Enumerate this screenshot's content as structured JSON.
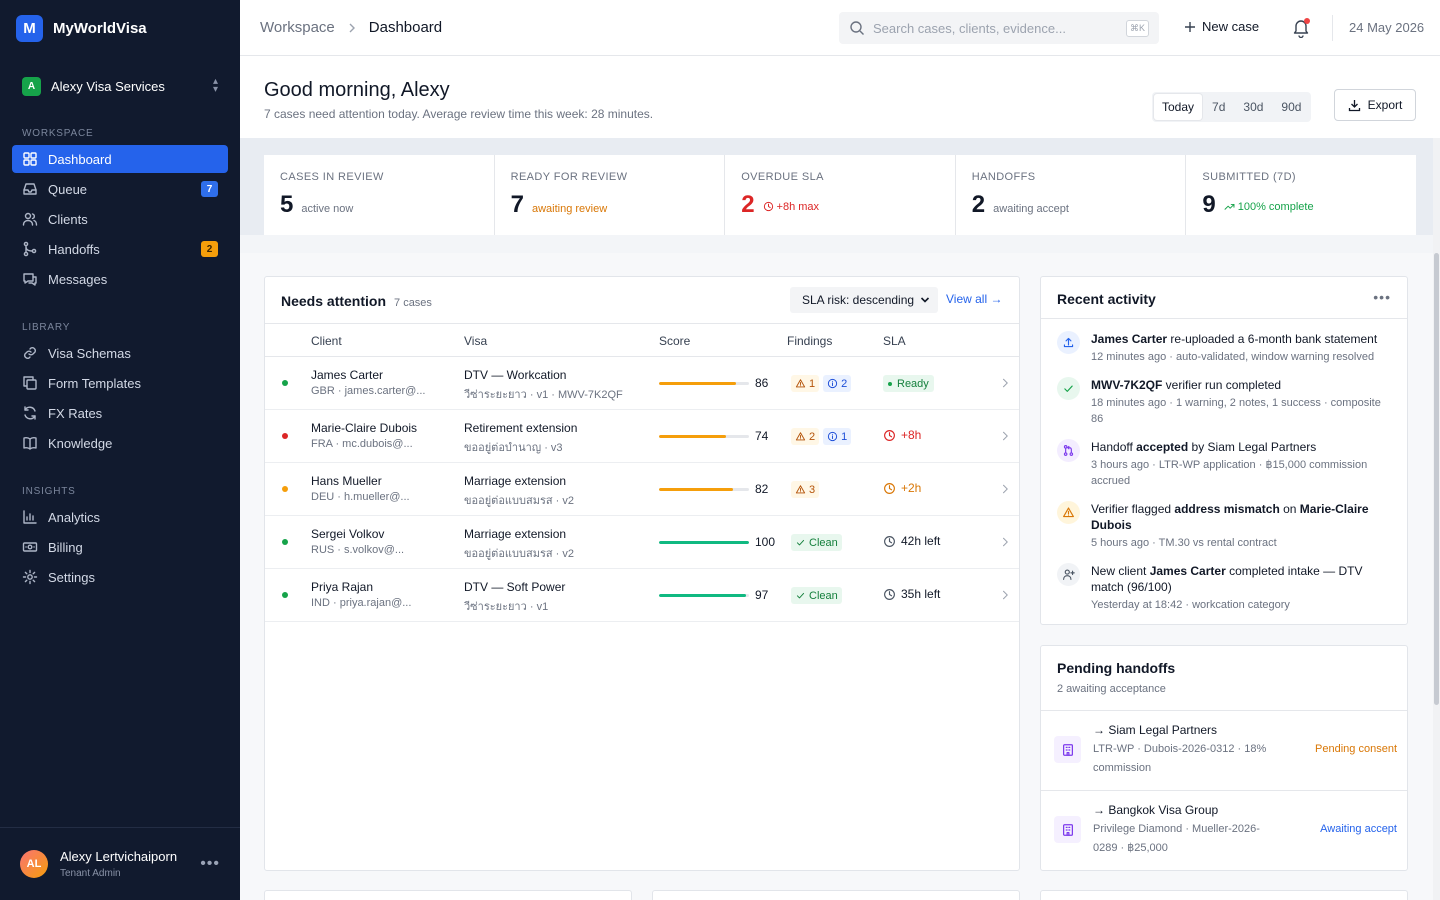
{
  "app": {
    "brand_letter": "M",
    "brand_name": "MyWorldVisa"
  },
  "tenant": {
    "badge": "A",
    "name": "Alexy Visa Services"
  },
  "sidebar": {
    "sections": [
      {
        "label": "WORKSPACE",
        "items": [
          {
            "label": "Dashboard",
            "icon": "grid-icon",
            "active": true
          },
          {
            "label": "Queue",
            "icon": "inbox-icon",
            "badge": "7"
          },
          {
            "label": "Clients",
            "icon": "users-icon"
          },
          {
            "label": "Handoffs",
            "icon": "git-merge-icon",
            "badge": "2"
          },
          {
            "label": "Messages",
            "icon": "messages-icon"
          }
        ]
      },
      {
        "label": "LIBRARY",
        "items": [
          {
            "label": "Visa Schemas",
            "icon": "link-icon"
          },
          {
            "label": "Form Templates",
            "icon": "copy-icon"
          },
          {
            "label": "FX Rates",
            "icon": "refresh-icon"
          },
          {
            "label": "Knowledge",
            "icon": "book-icon"
          }
        ]
      },
      {
        "label": "INSIGHTS",
        "items": [
          {
            "label": "Analytics",
            "icon": "bar-chart-icon"
          },
          {
            "label": "Billing",
            "icon": "banknote-icon"
          },
          {
            "label": "Settings",
            "icon": "gear-icon"
          }
        ]
      }
    ]
  },
  "user": {
    "initials": "AL",
    "name": "Alexy Lertvichaiporn",
    "role": "Tenant Admin"
  },
  "topbar": {
    "breadcrumb": [
      "Workspace",
      "Dashboard"
    ],
    "search_placeholder": "Search cases, clients, evidence...",
    "search_shortcut": "⌘K",
    "new_case": "New case",
    "date": "24 May 2026"
  },
  "header": {
    "greeting": "Good morning, Alexy",
    "subtitle": "7 cases need attention today. Average review time this week: 28 minutes.",
    "ranges": [
      "Today",
      "7d",
      "30d",
      "90d"
    ],
    "active_range": "Today",
    "export": "Export"
  },
  "stats": [
    {
      "label": "CASES IN REVIEW",
      "value": "5",
      "note": "active now",
      "tone": "neutral"
    },
    {
      "label": "READY FOR REVIEW",
      "value": "7",
      "note": "awaiting review",
      "tone": "amber"
    },
    {
      "label": "OVERDUE SLA",
      "value": "2",
      "note": "+8h max",
      "tone": "red"
    },
    {
      "label": "HANDOFFS",
      "value": "2",
      "note": "awaiting accept",
      "tone": "neutral"
    },
    {
      "label": "SUBMITTED (7D)",
      "value": "9",
      "note": "100% complete",
      "tone": "green"
    }
  ],
  "attention": {
    "title": "Needs attention",
    "count": "7 cases",
    "sort": "SLA risk: descending",
    "view_all": "View all →",
    "columns": [
      "Client",
      "Visa",
      "Score",
      "Findings",
      "SLA"
    ],
    "rows": [
      {
        "name": "James Carter",
        "sub": "GBR · james.carter@...",
        "visa": "DTV — Workcation",
        "visa_sub": "วีซ่าระยะยาว · v1 · MWV-7K2QF",
        "score": 86,
        "dot": "#16a34a",
        "bar": "#f59e0b",
        "findings": [
          {
            "type": "warn",
            "text": "1"
          },
          {
            "type": "info",
            "text": "2"
          }
        ],
        "sla": "Ready",
        "sla_tone": "ready"
      },
      {
        "name": "Marie-Claire Dubois",
        "sub": "FRA · mc.dubois@...",
        "visa": "Retirement extension",
        "visa_sub": "ขออยู่ต่อบำนาญ · v3",
        "score": 74,
        "dot": "#dc2626",
        "bar": "#f59e0b",
        "findings": [
          {
            "type": "warn",
            "text": "2"
          },
          {
            "type": "info",
            "text": "1"
          }
        ],
        "sla": "+8h",
        "sla_tone": "red"
      },
      {
        "name": "Hans Mueller",
        "sub": "DEU · h.mueller@...",
        "visa": "Marriage extension",
        "visa_sub": "ขออยู่ต่อแบบสมรส · v2",
        "score": 82,
        "dot": "#f59e0b",
        "bar": "#f59e0b",
        "findings": [
          {
            "type": "warn",
            "text": "3"
          }
        ],
        "sla": "+2h",
        "sla_tone": "amber"
      },
      {
        "name": "Sergei Volkov",
        "sub": "RUS · s.volkov@...",
        "visa": "Marriage extension",
        "visa_sub": "ขออยู่ต่อแบบสมรส · v2",
        "score": 100,
        "dot": "#16a34a",
        "bar": "#10b981",
        "findings": [
          {
            "type": "clean",
            "text": "Clean"
          }
        ],
        "sla": "42h left",
        "sla_tone": "neutral"
      },
      {
        "name": "Priya Rajan",
        "sub": "IND · priya.rajan@...",
        "visa": "DTV — Soft Power",
        "visa_sub": "วีซ่าระยะยาว · v1",
        "score": 97,
        "dot": "#16a34a",
        "bar": "#10b981",
        "findings": [
          {
            "type": "clean",
            "text": "Clean"
          }
        ],
        "sla": "35h left",
        "sla_tone": "neutral"
      }
    ]
  },
  "activity": {
    "title": "Recent activity",
    "items": [
      {
        "icon": "upload-icon",
        "color": "#2563eb",
        "bg": "#eaf1ff",
        "parts": [
          [
            "b",
            "James Carter"
          ],
          [
            "t",
            " re-uploaded a 6-month bank statement"
          ]
        ],
        "meta": "12 minutes ago · auto-validated, window warning resolved"
      },
      {
        "icon": "check-icon",
        "color": "#16a34a",
        "bg": "#e8f7ee",
        "parts": [
          [
            "b",
            "MWV-7K2QF"
          ],
          [
            "t",
            " verifier run completed"
          ]
        ],
        "meta": "18 minutes ago · 1 warning, 2 notes, 1 success · composite 86"
      },
      {
        "icon": "merge-icon",
        "color": "#7c3aed",
        "bg": "#f3edff",
        "parts": [
          [
            "t",
            "Handoff "
          ],
          [
            "b",
            "accepted"
          ],
          [
            "t",
            " by Siam Legal Partners"
          ]
        ],
        "meta": "3 hours ago · LTR-WP application · ฿15,000 commission accrued"
      },
      {
        "icon": "warning-icon",
        "color": "#d97706",
        "bg": "#fff5db",
        "parts": [
          [
            "t",
            "Verifier flagged "
          ],
          [
            "b",
            "address mismatch"
          ],
          [
            "t",
            " on "
          ],
          [
            "b",
            "Marie-Claire Dubois"
          ]
        ],
        "meta": "5 hours ago · TM.30 vs rental contract"
      },
      {
        "icon": "user-plus-icon",
        "color": "#4b5563",
        "bg": "#f1f3f6",
        "parts": [
          [
            "t",
            "New client "
          ],
          [
            "b",
            "James Carter"
          ],
          [
            "t",
            " completed intake — DTV match (96/100)"
          ]
        ],
        "meta": "Yesterday at 18:42 · workcation category"
      }
    ]
  },
  "handoffs": {
    "title": "Pending handoffs",
    "sub": "2 awaiting acceptance",
    "items": [
      {
        "name": "→ Siam Legal Partners",
        "meta": "LTR-WP · Dubois-2026-0312 · 18% commission",
        "status": "Pending consent",
        "status_color": "#d97706"
      },
      {
        "name": "→ Bangkok Visa Group",
        "meta": "Privilege Diamond · Mueller-2026-0289 · ฿25,000",
        "status": "Awaiting accept",
        "status_color": "#2563eb"
      }
    ]
  }
}
